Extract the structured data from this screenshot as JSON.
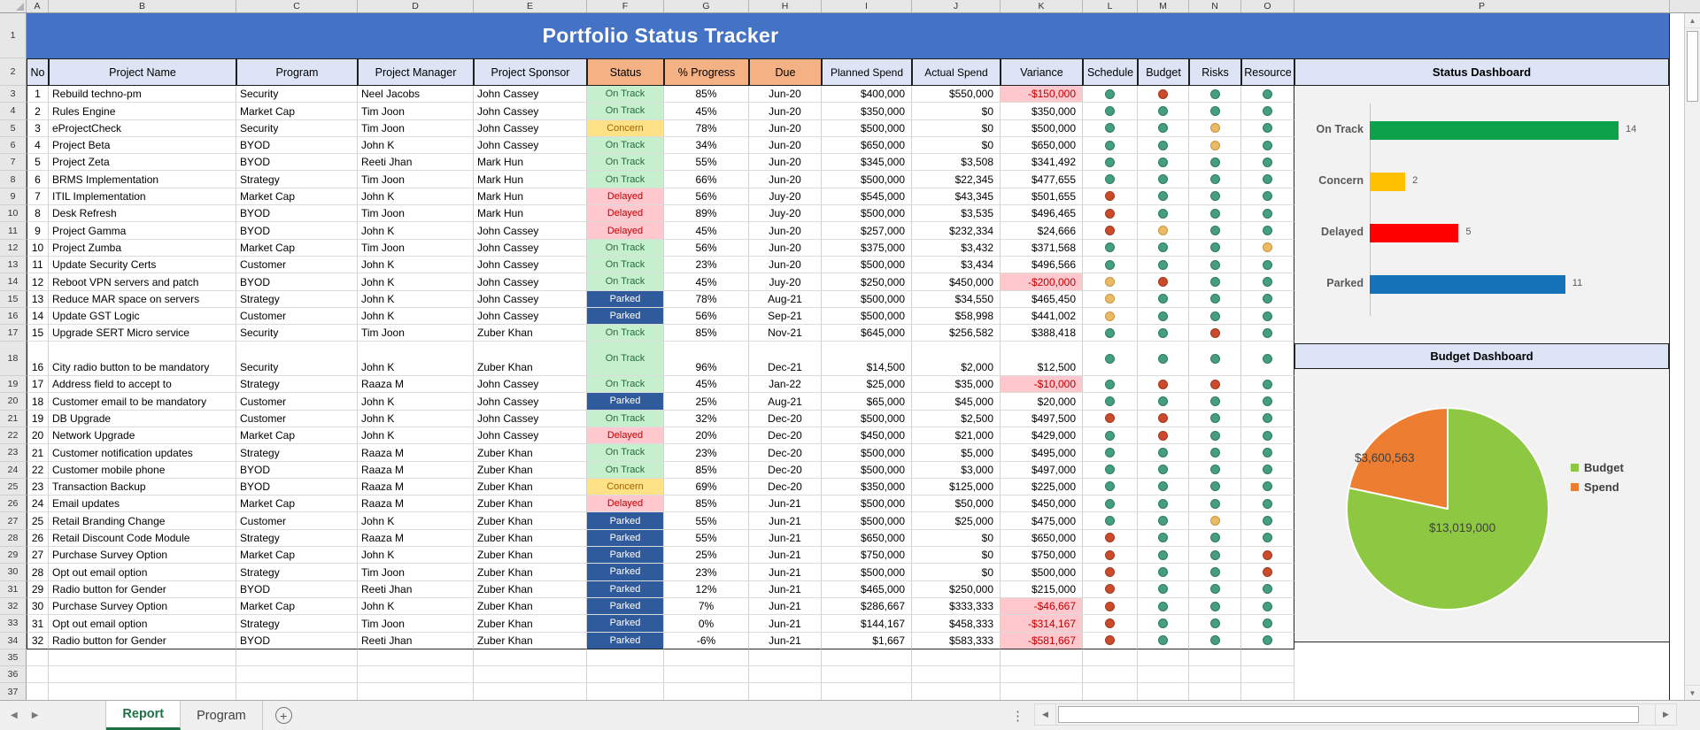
{
  "app": {
    "title": "Portfolio Status Tracker"
  },
  "column_letters": [
    "A",
    "B",
    "C",
    "D",
    "E",
    "F",
    "G",
    "H",
    "I",
    "J",
    "K",
    "L",
    "M",
    "N",
    "O",
    "P"
  ],
  "table": {
    "headers": [
      "No",
      "Project Name",
      "Program",
      "Project Manager",
      "Project Sponsor",
      "Status",
      "% Progress",
      "Due",
      "Planned Spend",
      "Actual Spend",
      "Variance",
      "Schedule",
      "Budget",
      "Risks",
      "Resource"
    ],
    "rows": [
      {
        "no": "1",
        "name": "Rebuild techno-pm",
        "program": "Security",
        "manager": "Neel Jacobs",
        "sponsor": "John Cassey",
        "status": "On Track",
        "progress": "85%",
        "due": "Jun-20",
        "planned": "$400,000",
        "actual": "$550,000",
        "variance": "-$150,000",
        "dots": [
          "g",
          "r",
          "g",
          "g"
        ]
      },
      {
        "no": "2",
        "name": "Rules Engine",
        "program": "Market Cap",
        "manager": "Tim Joon",
        "sponsor": "John Cassey",
        "status": "On Track",
        "progress": "45%",
        "due": "Jun-20",
        "planned": "$350,000",
        "actual": "$0",
        "variance": "$350,000",
        "dots": [
          "g",
          "g",
          "g",
          "g"
        ]
      },
      {
        "no": "3",
        "name": "eProjectCheck",
        "program": "Security",
        "manager": "Tim Joon",
        "sponsor": "John Cassey",
        "status": "Concern",
        "progress": "78%",
        "due": "Jun-20",
        "planned": "$500,000",
        "actual": "$0",
        "variance": "$500,000",
        "dots": [
          "g",
          "g",
          "a",
          "g"
        ]
      },
      {
        "no": "4",
        "name": "Project Beta",
        "program": "BYOD",
        "manager": "John K",
        "sponsor": "John Cassey",
        "status": "On Track",
        "progress": "34%",
        "due": "Jun-20",
        "planned": "$650,000",
        "actual": "$0",
        "variance": "$650,000",
        "dots": [
          "g",
          "g",
          "a",
          "g"
        ]
      },
      {
        "no": "5",
        "name": "Project Zeta",
        "program": "BYOD",
        "manager": "Reeti Jhan",
        "sponsor": "Mark Hun",
        "status": "On Track",
        "progress": "55%",
        "due": "Jun-20",
        "planned": "$345,000",
        "actual": "$3,508",
        "variance": "$341,492",
        "dots": [
          "g",
          "g",
          "g",
          "g"
        ]
      },
      {
        "no": "6",
        "name": "BRMS Implementation",
        "program": "Strategy",
        "manager": "Tim Joon",
        "sponsor": "Mark Hun",
        "status": "On Track",
        "progress": "66%",
        "due": "Jun-20",
        "planned": "$500,000",
        "actual": "$22,345",
        "variance": "$477,655",
        "dots": [
          "g",
          "g",
          "g",
          "g"
        ]
      },
      {
        "no": "7",
        "name": "ITIL Implementation",
        "program": "Market Cap",
        "manager": "John K",
        "sponsor": "Mark Hun",
        "status": "Delayed",
        "progress": "56%",
        "due": "Juy-20",
        "planned": "$545,000",
        "actual": "$43,345",
        "variance": "$501,655",
        "dots": [
          "r",
          "g",
          "g",
          "g"
        ]
      },
      {
        "no": "8",
        "name": "Desk Refresh",
        "program": "BYOD",
        "manager": "Tim Joon",
        "sponsor": "Mark Hun",
        "status": "Delayed",
        "progress": "89%",
        "due": "Juy-20",
        "planned": "$500,000",
        "actual": "$3,535",
        "variance": "$496,465",
        "dots": [
          "r",
          "g",
          "g",
          "g"
        ]
      },
      {
        "no": "9",
        "name": "Project Gamma",
        "program": "BYOD",
        "manager": "John K",
        "sponsor": "John Cassey",
        "status": "Delayed",
        "progress": "45%",
        "due": "Jun-20",
        "planned": "$257,000",
        "actual": "$232,334",
        "variance": "$24,666",
        "dots": [
          "r",
          "a",
          "g",
          "g"
        ]
      },
      {
        "no": "10",
        "name": "Project Zumba",
        "program": "Market Cap",
        "manager": "Tim Joon",
        "sponsor": "John Cassey",
        "status": "On Track",
        "progress": "56%",
        "due": "Jun-20",
        "planned": "$375,000",
        "actual": "$3,432",
        "variance": "$371,568",
        "dots": [
          "g",
          "g",
          "g",
          "a"
        ]
      },
      {
        "no": "11",
        "name": "Update Security Certs",
        "program": "Customer",
        "manager": "John K",
        "sponsor": "John Cassey",
        "status": "On Track",
        "progress": "23%",
        "due": "Jun-20",
        "planned": "$500,000",
        "actual": "$3,434",
        "variance": "$496,566",
        "dots": [
          "g",
          "g",
          "g",
          "g"
        ]
      },
      {
        "no": "12",
        "name": "Reboot VPN servers and patch",
        "program": "BYOD",
        "manager": "John K",
        "sponsor": "John Cassey",
        "status": "On Track",
        "progress": "45%",
        "due": "Juy-20",
        "planned": "$250,000",
        "actual": "$450,000",
        "variance": "-$200,000",
        "dots": [
          "a",
          "r",
          "g",
          "g"
        ]
      },
      {
        "no": "13",
        "name": "Reduce MAR space on servers",
        "program": "Strategy",
        "manager": "John K",
        "sponsor": "John Cassey",
        "status": "Parked",
        "progress": "78%",
        "due": "Aug-21",
        "planned": "$500,000",
        "actual": "$34,550",
        "variance": "$465,450",
        "dots": [
          "a",
          "g",
          "g",
          "g"
        ]
      },
      {
        "no": "14",
        "name": "Update GST Logic",
        "program": "Customer",
        "manager": "John K",
        "sponsor": "John Cassey",
        "status": "Parked",
        "progress": "56%",
        "due": "Sep-21",
        "planned": "$500,000",
        "actual": "$58,998",
        "variance": "$441,002",
        "dots": [
          "a",
          "g",
          "g",
          "g"
        ]
      },
      {
        "no": "15",
        "name": "Upgrade SERT Micro service",
        "program": "Security",
        "manager": "Tim Joon",
        "sponsor": "Zuber Khan",
        "status": "On Track",
        "progress": "85%",
        "due": "Nov-21",
        "planned": "$645,000",
        "actual": "$256,582",
        "variance": "$388,418",
        "dots": [
          "g",
          "g",
          "r",
          "g"
        ]
      },
      {
        "no": "16",
        "name": "City radio button to be mandatory",
        "program": "Security",
        "manager": "John K",
        "sponsor": "Zuber Khan",
        "status": "On Track",
        "progress": "96%",
        "due": "Dec-21",
        "planned": "$14,500",
        "actual": "$2,000",
        "variance": "$12,500",
        "dots": [
          "g",
          "g",
          "g",
          "g"
        ],
        "tall": true
      },
      {
        "no": "17",
        "name": "Address field to accept to",
        "program": "Strategy",
        "manager": "Raaza M",
        "sponsor": "John Cassey",
        "status": "On Track",
        "progress": "45%",
        "due": "Jan-22",
        "planned": "$25,000",
        "actual": "$35,000",
        "variance": "-$10,000",
        "dots": [
          "g",
          "r",
          "r",
          "g"
        ]
      },
      {
        "no": "18",
        "name": "Customer email to be mandatory",
        "program": "Customer",
        "manager": "John K",
        "sponsor": "John Cassey",
        "status": "Parked",
        "progress": "25%",
        "due": "Aug-21",
        "planned": "$65,000",
        "actual": "$45,000",
        "variance": "$20,000",
        "dots": [
          "g",
          "g",
          "g",
          "g"
        ]
      },
      {
        "no": "19",
        "name": "DB Upgrade",
        "program": "Customer",
        "manager": "John K",
        "sponsor": "John Cassey",
        "status": "On Track",
        "progress": "32%",
        "due": "Dec-20",
        "planned": "$500,000",
        "actual": "$2,500",
        "variance": "$497,500",
        "dots": [
          "r",
          "r",
          "g",
          "g"
        ]
      },
      {
        "no": "20",
        "name": "Network Upgrade",
        "program": "Market Cap",
        "manager": "John K",
        "sponsor": "John Cassey",
        "status": "Delayed",
        "progress": "20%",
        "due": "Dec-20",
        "planned": "$450,000",
        "actual": "$21,000",
        "variance": "$429,000",
        "dots": [
          "g",
          "r",
          "g",
          "g"
        ]
      },
      {
        "no": "21",
        "name": "Customer notification updates",
        "program": "Strategy",
        "manager": "Raaza M",
        "sponsor": "Zuber Khan",
        "status": "On Track",
        "progress": "23%",
        "due": "Dec-20",
        "planned": "$500,000",
        "actual": "$5,000",
        "variance": "$495,000",
        "dots": [
          "g",
          "g",
          "g",
          "g"
        ]
      },
      {
        "no": "22",
        "name": "Customer mobile phone",
        "program": "BYOD",
        "manager": "Raaza M",
        "sponsor": "Zuber Khan",
        "status": "On Track",
        "progress": "85%",
        "due": "Dec-20",
        "planned": "$500,000",
        "actual": "$3,000",
        "variance": "$497,000",
        "dots": [
          "g",
          "g",
          "g",
          "g"
        ]
      },
      {
        "no": "23",
        "name": "Transaction Backup",
        "program": "BYOD",
        "manager": "Raaza M",
        "sponsor": "Zuber Khan",
        "status": "Concern",
        "progress": "69%",
        "due": "Dec-20",
        "planned": "$350,000",
        "actual": "$125,000",
        "variance": "$225,000",
        "dots": [
          "g",
          "g",
          "g",
          "g"
        ]
      },
      {
        "no": "24",
        "name": "Email updates",
        "program": "Market Cap",
        "manager": "Raaza M",
        "sponsor": "Zuber Khan",
        "status": "Delayed",
        "progress": "85%",
        "due": "Jun-21",
        "planned": "$500,000",
        "actual": "$50,000",
        "variance": "$450,000",
        "dots": [
          "g",
          "g",
          "g",
          "g"
        ]
      },
      {
        "no": "25",
        "name": "Retail Branding Change",
        "program": "Customer",
        "manager": "John K",
        "sponsor": "Zuber Khan",
        "status": "Parked",
        "progress": "55%",
        "due": "Jun-21",
        "planned": "$500,000",
        "actual": "$25,000",
        "variance": "$475,000",
        "dots": [
          "g",
          "g",
          "a",
          "g"
        ]
      },
      {
        "no": "26",
        "name": "Retail Discount Code Module",
        "program": "Strategy",
        "manager": "Raaza M",
        "sponsor": "Zuber Khan",
        "status": "Parked",
        "progress": "55%",
        "due": "Jun-21",
        "planned": "$650,000",
        "actual": "$0",
        "variance": "$650,000",
        "dots": [
          "r",
          "g",
          "g",
          "g"
        ]
      },
      {
        "no": "27",
        "name": "Purchase Survey Option",
        "program": "Market Cap",
        "manager": "John K",
        "sponsor": "Zuber Khan",
        "status": "Parked",
        "progress": "25%",
        "due": "Jun-21",
        "planned": "$750,000",
        "actual": "$0",
        "variance": "$750,000",
        "dots": [
          "r",
          "g",
          "g",
          "r"
        ]
      },
      {
        "no": "28",
        "name": "Opt out email option",
        "program": "Strategy",
        "manager": "Tim Joon",
        "sponsor": "Zuber Khan",
        "status": "Parked",
        "progress": "23%",
        "due": "Jun-21",
        "planned": "$500,000",
        "actual": "$0",
        "variance": "$500,000",
        "dots": [
          "r",
          "g",
          "g",
          "r"
        ]
      },
      {
        "no": "29",
        "name": "Radio button for Gender",
        "program": "BYOD",
        "manager": "Reeti Jhan",
        "sponsor": "Zuber Khan",
        "status": "Parked",
        "progress": "12%",
        "due": "Jun-21",
        "planned": "$465,000",
        "actual": "$250,000",
        "variance": "$215,000",
        "dots": [
          "r",
          "g",
          "g",
          "g"
        ]
      },
      {
        "no": "30",
        "name": "Purchase Survey Option",
        "program": "Market Cap",
        "manager": "John K",
        "sponsor": "Zuber Khan",
        "status": "Parked",
        "progress": "7%",
        "due": "Jun-21",
        "planned": "$286,667",
        "actual": "$333,333",
        "variance": "-$46,667",
        "dots": [
          "r",
          "g",
          "g",
          "g"
        ]
      },
      {
        "no": "31",
        "name": "Opt out email option",
        "program": "Strategy",
        "manager": "Tim Joon",
        "sponsor": "Zuber Khan",
        "status": "Parked",
        "progress": "0%",
        "due": "Jun-21",
        "planned": "$144,167",
        "actual": "$458,333",
        "variance": "-$314,167",
        "dots": [
          "r",
          "g",
          "g",
          "g"
        ]
      },
      {
        "no": "32",
        "name": "Radio button for Gender",
        "program": "BYOD",
        "manager": "Reeti Jhan",
        "sponsor": "Zuber Khan",
        "status": "Parked",
        "progress": "-6%",
        "due": "Jun-21",
        "planned": "$1,667",
        "actual": "$583,333",
        "variance": "-$581,667",
        "dots": [
          "r",
          "g",
          "g",
          "g"
        ]
      }
    ]
  },
  "dashboards": {
    "status": {
      "title": "Status Dashboard"
    },
    "budget": {
      "title": "Budget Dashboard"
    }
  },
  "chart_data": [
    {
      "type": "bar",
      "orientation": "horizontal",
      "title": "Status Dashboard",
      "categories": [
        "On Track",
        "Concern",
        "Delayed",
        "Parked"
      ],
      "values": [
        14,
        2,
        5,
        11
      ],
      "data_labels": [
        "14",
        "2",
        "5",
        "11"
      ],
      "colors": [
        "#0CA24C",
        "#FFC000",
        "#FE0000",
        "#1572B8"
      ],
      "xlim": [
        0,
        14
      ],
      "grid": false,
      "legend_position": "none"
    },
    {
      "type": "pie",
      "title": "Budget Dashboard",
      "labels": [
        "Budget",
        "Spend"
      ],
      "values": [
        13019000,
        3600563
      ],
      "data_labels": [
        "$13,019,000",
        "$3,600,563"
      ],
      "colors": [
        "#8EC741",
        "#ED7D31"
      ],
      "legend_position": "right"
    }
  ],
  "sheet_tabs": {
    "tabs": [
      "Report",
      "Program"
    ],
    "active": "Report",
    "add_label": "+"
  },
  "colors": {
    "title_bar": "#4472C4",
    "header_fill": "#DCE4F6",
    "header_orange": "#F4B183",
    "status_on_track_bg": "#C6EFCE",
    "status_on_track_text": "#276B3C",
    "status_concern_bg": "#FFE188",
    "status_concern_text": "#9C6500",
    "status_delayed_bg": "#FFC7CE",
    "status_delayed_text": "#C00000",
    "status_parked_bg": "#2F5B9D",
    "status_parked_text": "#FFFFFF",
    "variance_negative_bg": "#FFC7CE",
    "variance_negative_text": "#C00000",
    "dot_green": "#459D82",
    "dot_red": "#CB4A2C",
    "dot_amber": "#ECB966"
  }
}
